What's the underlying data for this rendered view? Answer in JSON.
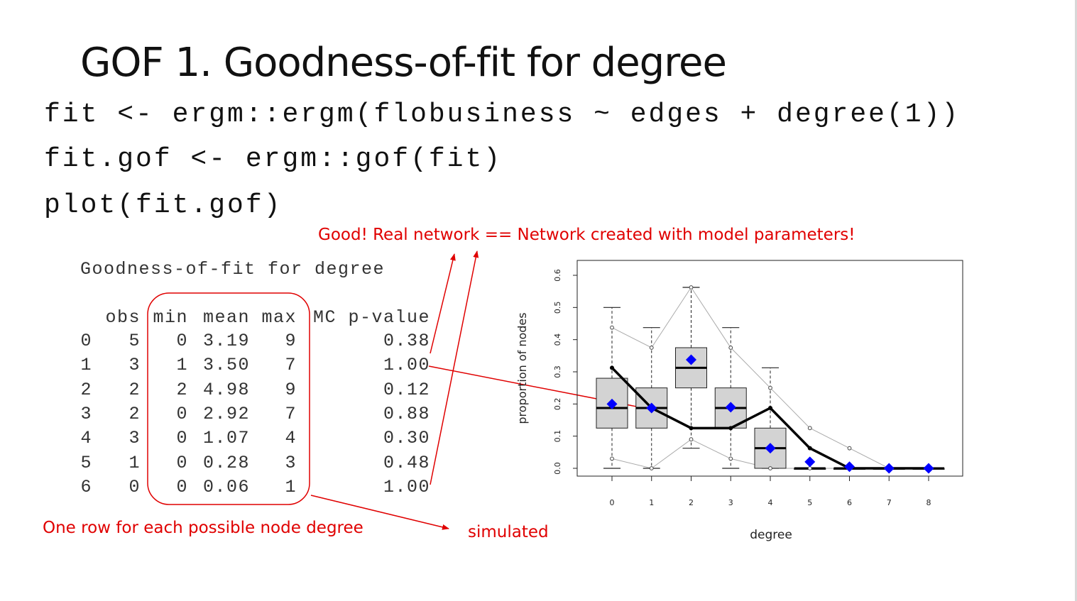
{
  "slide": {
    "title": "GOF 1. Goodness-of-fit for degree",
    "code_lines": [
      "fit <- ergm::ergm(flobusiness ~ edges + degree(1))",
      "fit.gof <- ergm::gof(fit)",
      "plot(fit.gof)"
    ],
    "annotations": {
      "good": "Good! Real network == Network created with model parameters!",
      "rows": "One row for each possible node degree",
      "simulated": "simulated"
    },
    "accent_color": "#e00000"
  },
  "gof_table": {
    "heading": "Goodness-of-fit for degree",
    "columns": [
      "",
      "obs",
      "min",
      "mean",
      "max",
      "MC p-value"
    ],
    "rows": [
      [
        "0",
        "5",
        "0",
        "3.19",
        "9",
        "0.38"
      ],
      [
        "1",
        "3",
        "1",
        "3.50",
        "7",
        "1.00"
      ],
      [
        "2",
        "2",
        "2",
        "4.98",
        "9",
        "0.12"
      ],
      [
        "3",
        "2",
        "0",
        "2.92",
        "7",
        "0.88"
      ],
      [
        "4",
        "3",
        "0",
        "1.07",
        "4",
        "0.30"
      ],
      [
        "5",
        "1",
        "0",
        "0.28",
        "3",
        "0.48"
      ],
      [
        "6",
        "0",
        "0",
        "0.06",
        "1",
        "1.00"
      ]
    ]
  },
  "chart_data": {
    "type": "boxplot",
    "xlabel": "degree",
    "ylabel": "proportion of nodes",
    "xlim": [
      -0.4,
      8.4
    ],
    "ylim": [
      0,
      0.6
    ],
    "x_ticks": [
      "0",
      "1",
      "2",
      "3",
      "4",
      "5",
      "6",
      "7",
      "8"
    ],
    "y_ticks": [
      "0.0",
      "0.1",
      "0.2",
      "0.3",
      "0.4",
      "0.5",
      "0.6"
    ],
    "boxes": [
      {
        "x": 0,
        "q1": 0.125,
        "median": 0.1875,
        "q3": 0.28,
        "wlo": 0.0,
        "whi": 0.5
      },
      {
        "x": 1,
        "q1": 0.125,
        "median": 0.1875,
        "q3": 0.25,
        "wlo": 0.0,
        "whi": 0.4375
      },
      {
        "x": 2,
        "q1": 0.25,
        "median": 0.3125,
        "q3": 0.375,
        "wlo": 0.0625,
        "whi": 0.5625
      },
      {
        "x": 3,
        "q1": 0.125,
        "median": 0.1875,
        "q3": 0.25,
        "wlo": 0.0,
        "whi": 0.4375
      },
      {
        "x": 4,
        "q1": 0.0,
        "median": 0.0625,
        "q3": 0.125,
        "wlo": 0.0,
        "whi": 0.3125
      },
      {
        "x": 5,
        "q1": 0.0,
        "median": 0.0,
        "q3": 0.0,
        "wlo": 0.0,
        "whi": 0.0
      },
      {
        "x": 6,
        "q1": 0.0,
        "median": 0.0,
        "q3": 0.0,
        "wlo": 0.0,
        "whi": 0.0
      },
      {
        "x": 7,
        "q1": 0.0,
        "median": 0.0,
        "q3": 0.0,
        "wlo": 0.0,
        "whi": 0.0
      },
      {
        "x": 8,
        "q1": 0.0,
        "median": 0.0,
        "q3": 0.0,
        "wlo": 0.0,
        "whi": 0.0
      }
    ],
    "means": [
      0.2,
      0.1875,
      0.3375,
      0.19,
      0.0625,
      0.02,
      0.005,
      0.0,
      0.0
    ],
    "observed": [
      0.3125,
      0.1875,
      0.125,
      0.125,
      0.1875,
      0.0625,
      0.0,
      0.0,
      0.0
    ],
    "upper_band": [
      0.4375,
      0.375,
      0.5625,
      0.375,
      0.25,
      0.125,
      0.0625,
      0.0,
      0.0
    ],
    "lower_band": [
      0.03,
      0.0,
      0.09,
      0.03,
      0.0,
      0.0,
      0.0,
      0.0,
      0.0
    ],
    "colors": {
      "box_fill": "#d3d3d3",
      "mean_marker": "#0000ff",
      "observed": "#000000",
      "band": "#aaaaaa"
    }
  }
}
